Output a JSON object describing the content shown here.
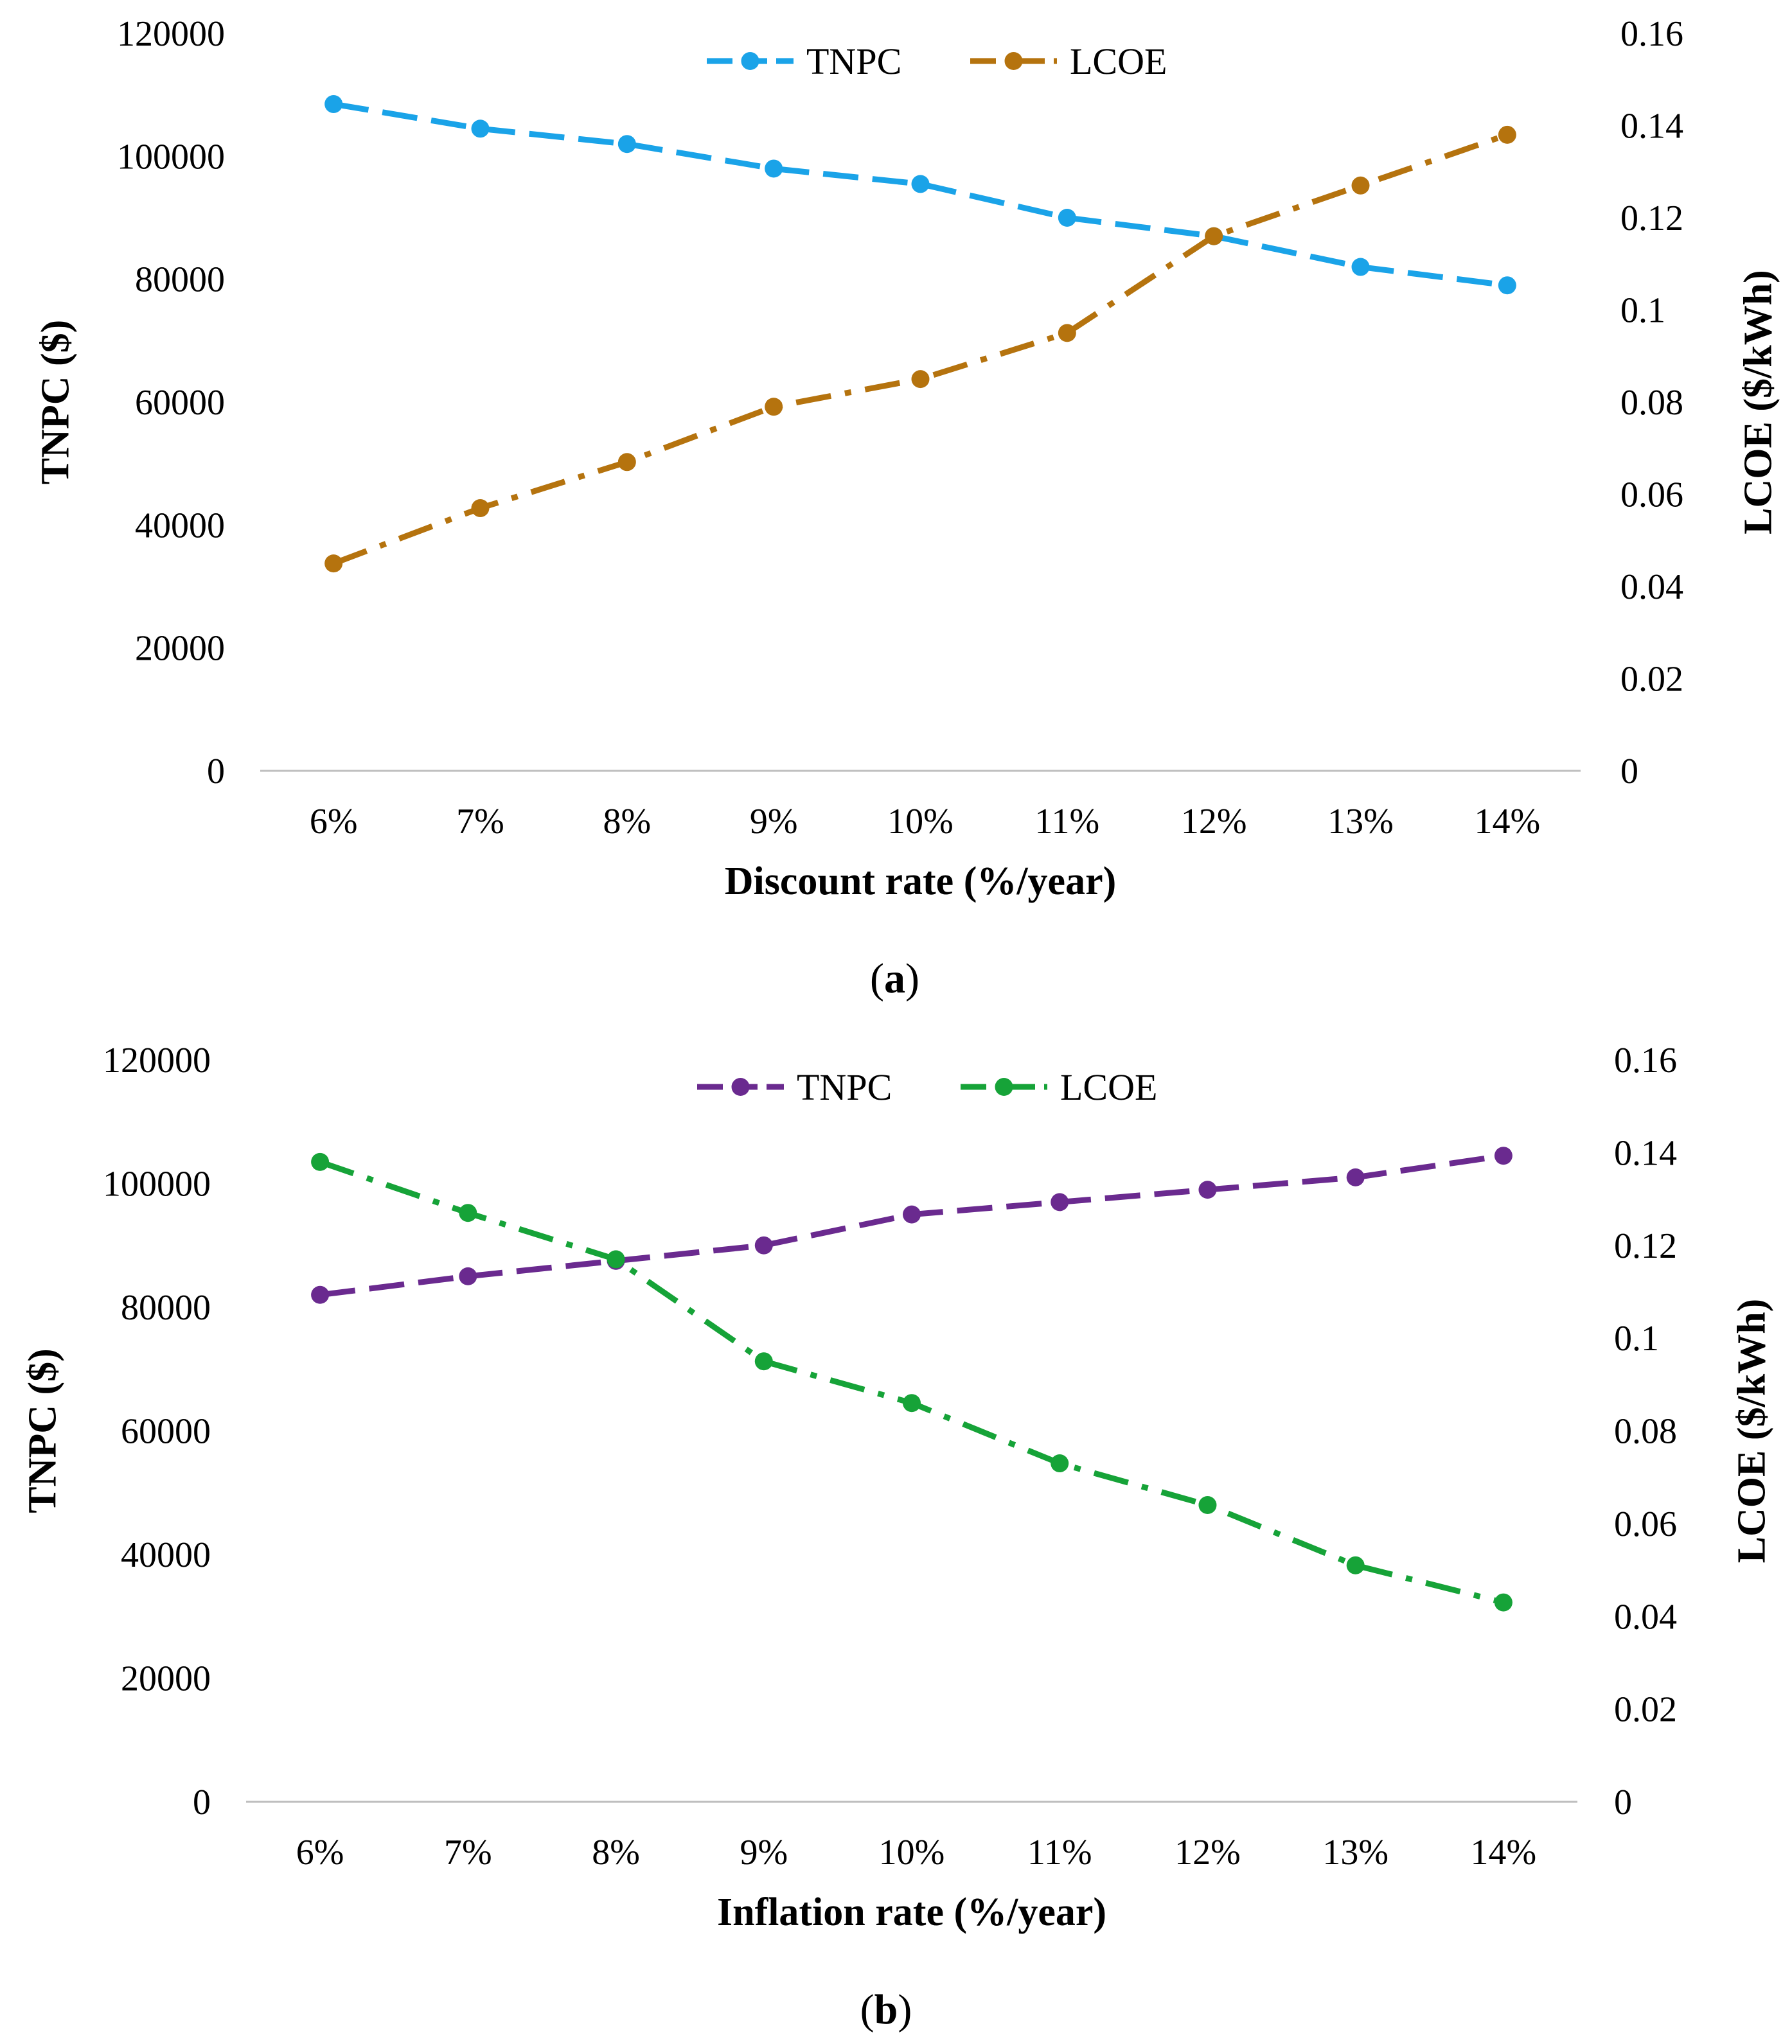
{
  "chart_data": [
    {
      "type": "line",
      "panel_label": "a",
      "categories": [
        "6%",
        "7%",
        "8%",
        "9%",
        "10%",
        "11%",
        "12%",
        "13%",
        "14%"
      ],
      "xlabel": "Discount rate (%/year)",
      "ylabel": "TNPC ($)",
      "y2label": "LCOE ($/kWh)",
      "ylim": [
        0,
        120000
      ],
      "y2lim": [
        0,
        0.16
      ],
      "yticks": [
        "0",
        "20000",
        "40000",
        "60000",
        "80000",
        "100000",
        "120000"
      ],
      "y2ticks": [
        "0",
        "0.02",
        "0.04",
        "0.06",
        "0.08",
        "0.1",
        "0.12",
        "0.14",
        "0.16"
      ],
      "legend_position": "top-center",
      "series": [
        {
          "name": "TNPC",
          "axis": "left",
          "color": "#1aa3e8",
          "dash": "dash",
          "values": [
            108500,
            104500,
            102000,
            98000,
            95500,
            90000,
            87000,
            82000,
            79000
          ]
        },
        {
          "name": "LCOE",
          "axis": "right",
          "color": "#b5730e",
          "dash": "dashdot",
          "values": [
            0.045,
            0.057,
            0.067,
            0.079,
            0.085,
            0.095,
            0.116,
            0.127,
            0.138
          ]
        }
      ]
    },
    {
      "type": "line",
      "panel_label": "b",
      "categories": [
        "6%",
        "7%",
        "8%",
        "9%",
        "10%",
        "11%",
        "12%",
        "13%",
        "14%"
      ],
      "xlabel": "Inflation rate (%/year)",
      "ylabel": "TNPC ($)",
      "y2label": "LCOE ($/kWh)",
      "ylim": [
        0,
        120000
      ],
      "y2lim": [
        0,
        0.16
      ],
      "yticks": [
        "0",
        "20000",
        "40000",
        "60000",
        "80000",
        "100000",
        "120000"
      ],
      "y2ticks": [
        "0",
        "0.02",
        "0.04",
        "0.06",
        "0.08",
        "0.1",
        "0.12",
        "0.14",
        "0.16"
      ],
      "legend_position": "top-center",
      "series": [
        {
          "name": "TNPC",
          "axis": "left",
          "color": "#6a2a8f",
          "dash": "dash",
          "values": [
            82000,
            85000,
            87500,
            90000,
            95000,
            97000,
            99000,
            101000,
            104500
          ]
        },
        {
          "name": "LCOE",
          "axis": "right",
          "color": "#16a338",
          "dash": "dashdot",
          "values": [
            0.138,
            0.127,
            0.117,
            0.095,
            0.086,
            0.073,
            0.064,
            0.051,
            0.043
          ]
        }
      ]
    }
  ]
}
